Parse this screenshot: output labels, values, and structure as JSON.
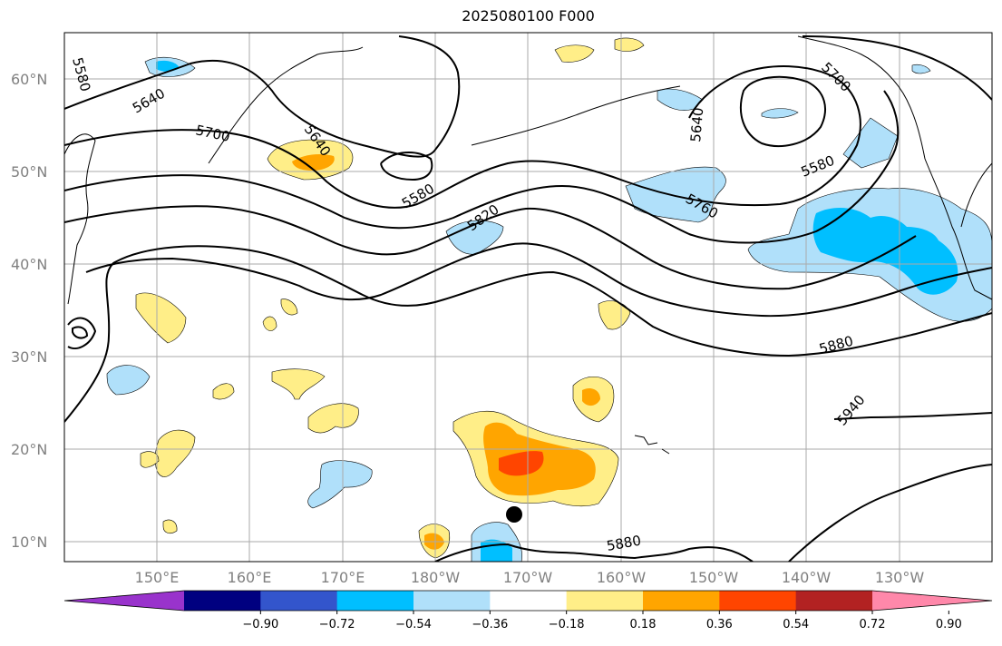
{
  "title": "2025080100 F000",
  "map": {
    "lat_labels": [
      "60°N",
      "50°N",
      "40°N",
      "30°N",
      "20°N",
      "10°N"
    ],
    "lon_labels": [
      "150°E",
      "160°E",
      "170°E",
      "180°W",
      "170°W",
      "160°W",
      "150°W",
      "140°W",
      "130°W"
    ],
    "contour_labels": [
      "5580",
      "5640",
      "5700",
      "5640",
      "5580",
      "5820",
      "5700",
      "5640",
      "5580",
      "5760",
      "5880",
      "5940",
      "5880"
    ],
    "station_marker": "black-dot"
  },
  "colorbar": {
    "colors": [
      "#9933cc",
      "#000080",
      "#3355cc",
      "#00bfff",
      "#b0e0fa",
      "#ffffff",
      "#ffee88",
      "#ffa500",
      "#ff4500",
      "#b22222",
      "#ff88aa"
    ],
    "tick_labels": [
      "−0.90",
      "−0.72",
      "−0.54",
      "−0.36",
      "−0.18",
      "0.18",
      "0.36",
      "0.54",
      "0.72",
      "0.90"
    ]
  }
}
